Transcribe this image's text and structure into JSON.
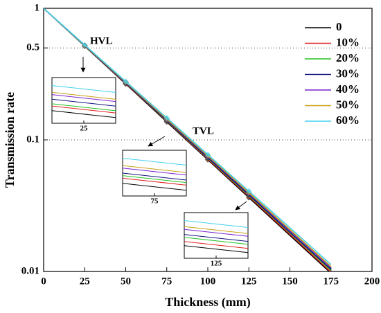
{
  "chart_data": {
    "type": "line",
    "xlabel": "Thickness (mm)",
    "ylabel": "Transmission rate",
    "x": [
      0,
      25,
      50,
      75,
      100,
      125,
      150,
      175
    ],
    "series": [
      {
        "name": "0",
        "color": "#000000",
        "values": [
          1,
          0.516,
          0.266,
          0.137,
          0.0707,
          0.0364,
          0.0188,
          0.0097
        ]
      },
      {
        "name": "10%",
        "color": "#e02020",
        "values": [
          1,
          0.518,
          0.268,
          0.139,
          0.0717,
          0.0371,
          0.0192,
          0.0099
        ]
      },
      {
        "name": "20%",
        "color": "#20c020",
        "values": [
          1,
          0.519,
          0.27,
          0.14,
          0.0728,
          0.0378,
          0.0197,
          0.0102
        ]
      },
      {
        "name": "30%",
        "color": "#101080",
        "values": [
          1,
          0.521,
          0.271,
          0.141,
          0.0735,
          0.0383,
          0.0199,
          0.0104
        ]
      },
      {
        "name": "40%",
        "color": "#7a20d0",
        "values": [
          1,
          0.523,
          0.274,
          0.143,
          0.075,
          0.0392,
          0.0205,
          0.0107
        ]
      },
      {
        "name": "50%",
        "color": "#c8a010",
        "values": [
          1,
          0.524,
          0.275,
          0.144,
          0.0758,
          0.0397,
          0.0208,
          0.0109
        ]
      },
      {
        "name": "60%",
        "color": "#40d0f0",
        "values": [
          1,
          0.527,
          0.278,
          0.147,
          0.0773,
          0.0408,
          0.0215,
          0.0113
        ]
      }
    ],
    "xlim": [
      0,
      200
    ],
    "xticks": [
      0,
      25,
      50,
      75,
      100,
      125,
      150,
      175,
      200
    ],
    "ylim": [
      0.01,
      1
    ],
    "yticks": [
      0.01,
      0.1,
      0.5,
      1
    ],
    "ylog": true,
    "grid_lines": [
      0.5,
      0.1
    ],
    "legend": "upper right",
    "annotations": [
      "HVL",
      "TVL"
    ],
    "insets": [
      {
        "label": "25",
        "x": 25
      },
      {
        "label": "75",
        "x": 75
      },
      {
        "label": "125",
        "x": 125
      }
    ]
  }
}
